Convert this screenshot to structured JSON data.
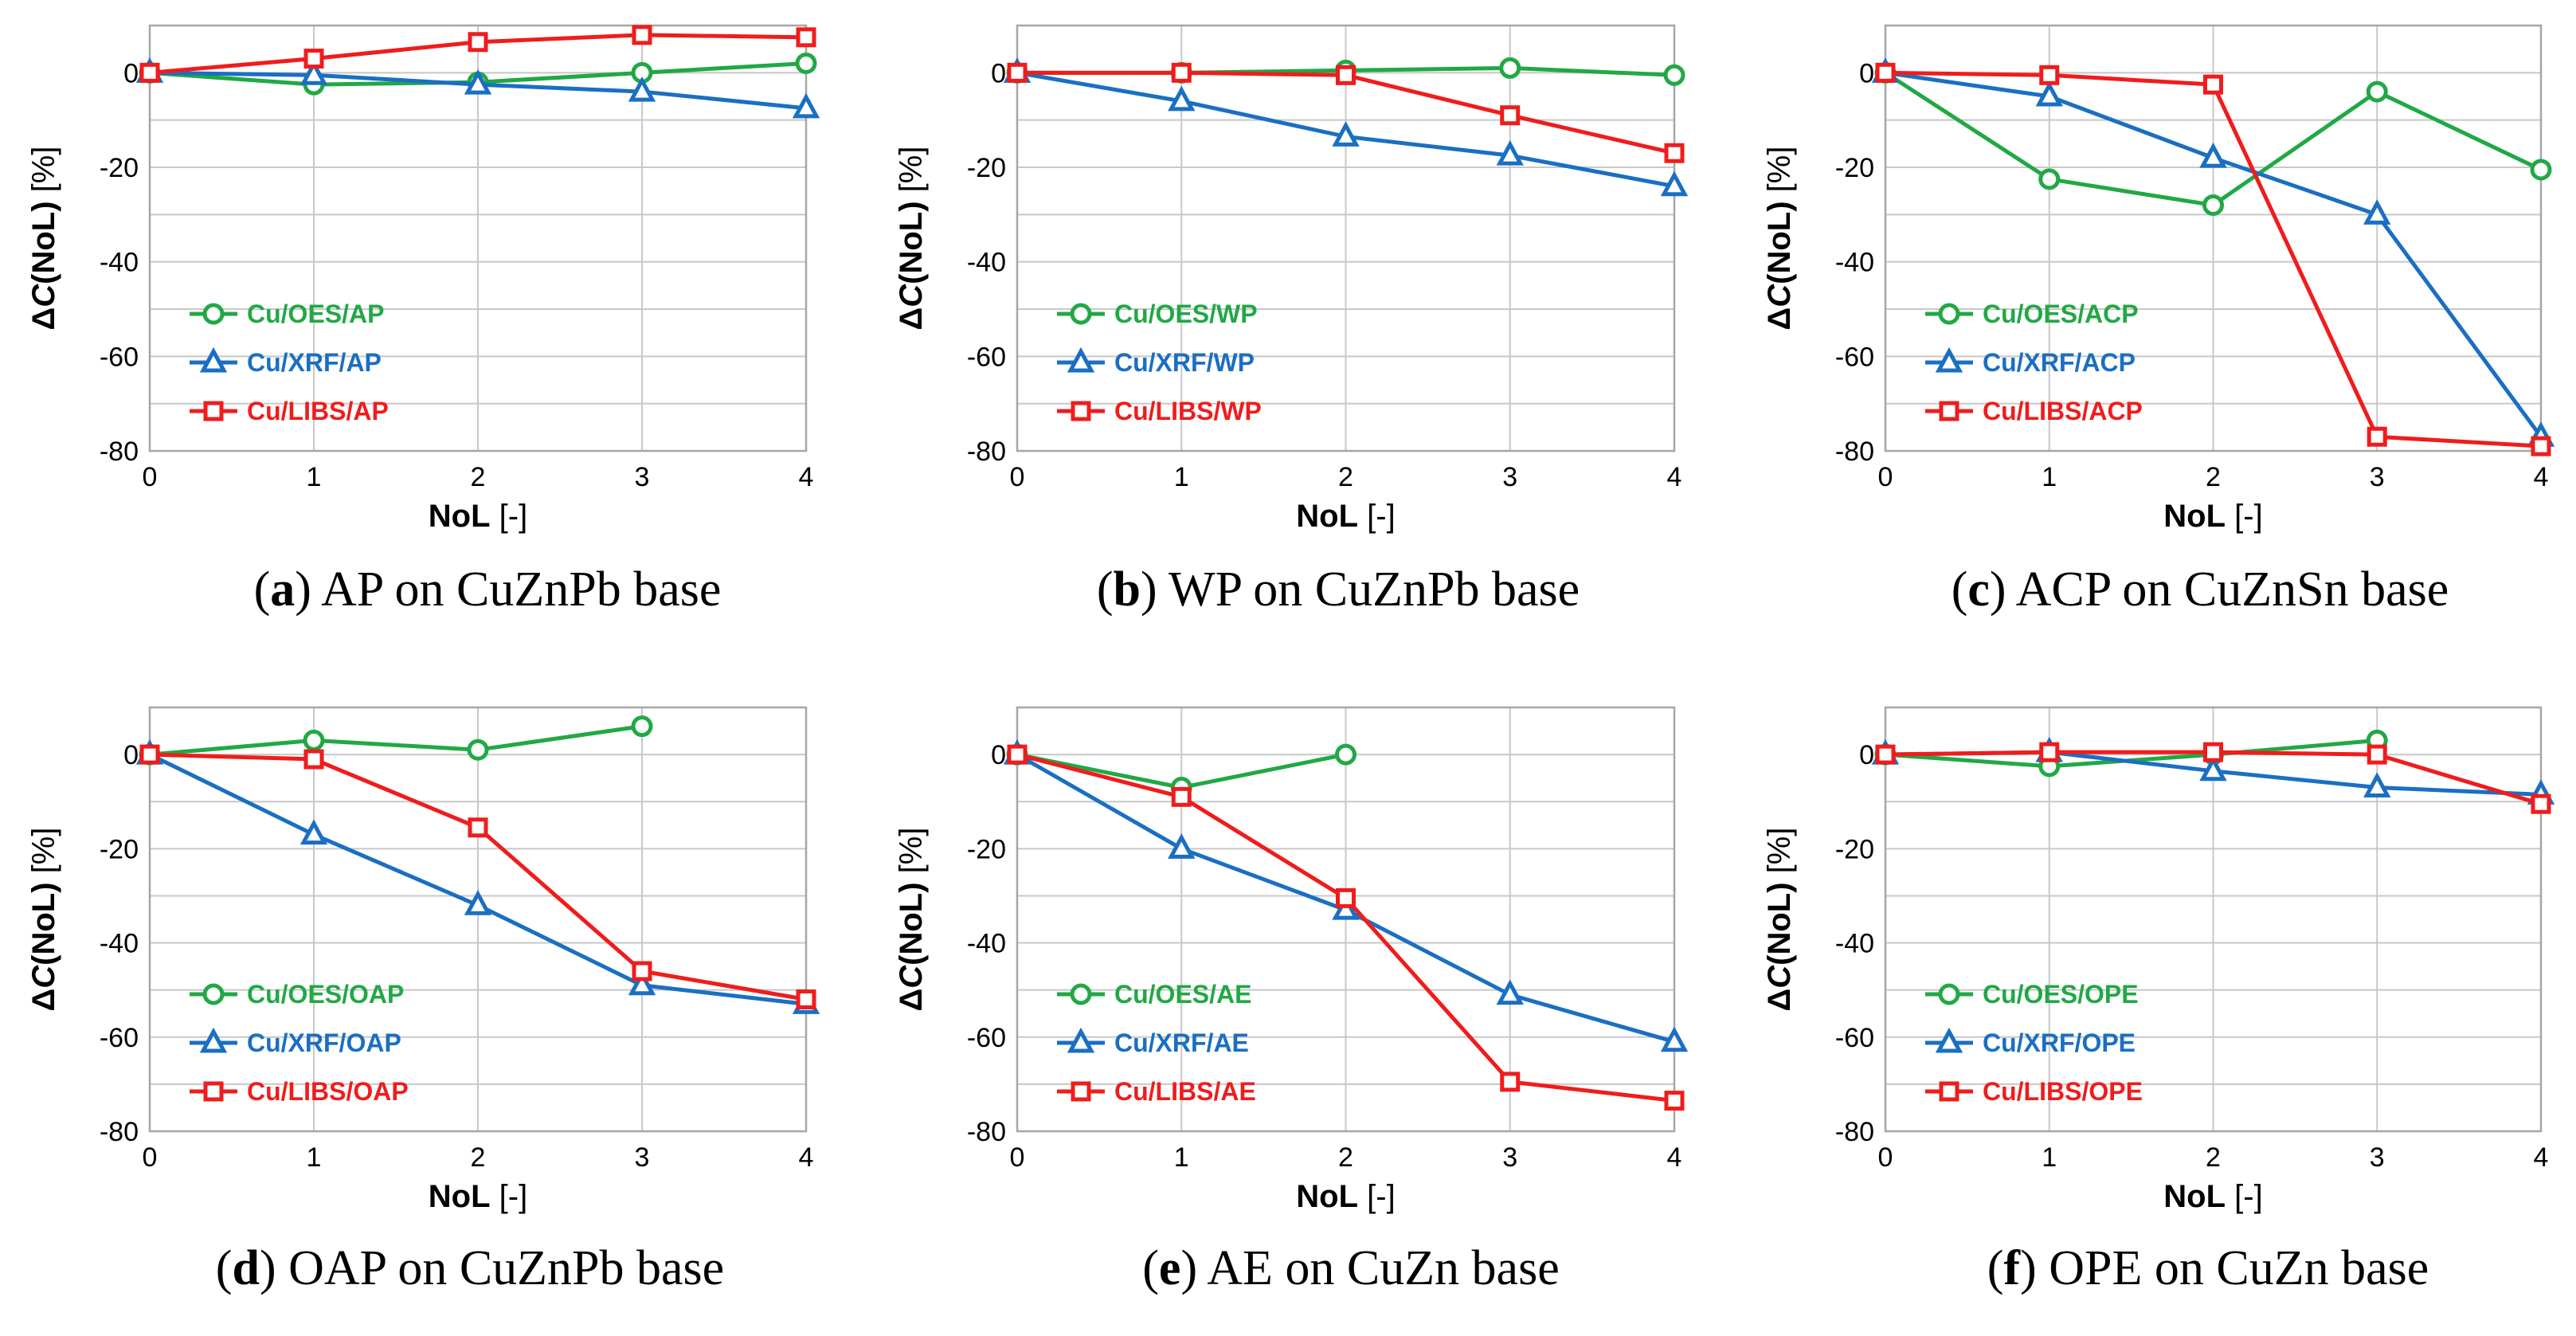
{
  "figure_title": "",
  "colors": {
    "oes": "#21a845",
    "xrf": "#1a6fc2",
    "libs": "#f01c1c"
  },
  "chart_data": [
    {
      "type": "line",
      "id": "a",
      "caption_letter": "a",
      "caption_text": "AP on CuZnPb base",
      "xlabel_bold": "NoL",
      "xlabel_rest": " [-]",
      "ylabel_prefix": "Δ",
      "ylabel_italic": "C",
      "ylabel_bold": "(NoL)",
      "ylabel_rest": " [%]",
      "xlim": [
        0,
        4
      ],
      "ylim": [
        -80,
        10
      ],
      "xticks": [
        0,
        1,
        2,
        3,
        4
      ],
      "yticks": [
        0,
        -20,
        -40,
        -60,
        -80
      ],
      "series": [
        {
          "name": "Cu/OES/AP",
          "key": "oes",
          "marker": "circle",
          "x": [
            0,
            1,
            2,
            3,
            4
          ],
          "y": [
            0,
            -2.5,
            -2,
            0,
            2
          ]
        },
        {
          "name": "Cu/XRF/AP",
          "key": "xrf",
          "marker": "triangle",
          "x": [
            0,
            1,
            2,
            3,
            4
          ],
          "y": [
            0,
            -0.5,
            -2.5,
            -4,
            -7.5
          ]
        },
        {
          "name": "Cu/LIBS/AP",
          "key": "libs",
          "marker": "square",
          "x": [
            0,
            1,
            2,
            3,
            4
          ],
          "y": [
            0,
            3,
            6.5,
            8,
            7.5
          ]
        }
      ]
    },
    {
      "type": "line",
      "id": "b",
      "caption_letter": "b",
      "caption_text": "WP on CuZnPb base",
      "xlabel_bold": "NoL",
      "xlabel_rest": " [-]",
      "ylabel_prefix": "Δ",
      "ylabel_italic": "C",
      "ylabel_bold": "(NoL)",
      "ylabel_rest": " [%]",
      "xlim": [
        0,
        4
      ],
      "ylim": [
        -80,
        10
      ],
      "xticks": [
        0,
        1,
        2,
        3,
        4
      ],
      "yticks": [
        0,
        -20,
        -40,
        -60,
        -80
      ],
      "series": [
        {
          "name": "Cu/OES/WP",
          "key": "oes",
          "marker": "circle",
          "x": [
            0,
            1,
            2,
            3,
            4
          ],
          "y": [
            0,
            0,
            0.5,
            1,
            -0.5
          ]
        },
        {
          "name": "Cu/XRF/WP",
          "key": "xrf",
          "marker": "triangle",
          "x": [
            0,
            1,
            2,
            3,
            4
          ],
          "y": [
            0,
            -6,
            -13.5,
            -17.5,
            -24
          ]
        },
        {
          "name": "Cu/LIBS/WP",
          "key": "libs",
          "marker": "square",
          "x": [
            0,
            1,
            2,
            3,
            4
          ],
          "y": [
            0,
            0,
            -0.5,
            -9,
            -17
          ]
        }
      ]
    },
    {
      "type": "line",
      "id": "c",
      "caption_letter": "c",
      "caption_text": "ACP on CuZnSn base",
      "xlabel_bold": "NoL",
      "xlabel_rest": " [-]",
      "ylabel_prefix": "Δ",
      "ylabel_italic": "C",
      "ylabel_bold": "(NoL)",
      "ylabel_rest": " [%]",
      "xlim": [
        0,
        4
      ],
      "ylim": [
        -80,
        10
      ],
      "xticks": [
        0,
        1,
        2,
        3,
        4
      ],
      "yticks": [
        0,
        -20,
        -40,
        -60,
        -80
      ],
      "series": [
        {
          "name": "Cu/OES/ACP",
          "key": "oes",
          "marker": "circle",
          "x": [
            0,
            1,
            2,
            3,
            4
          ],
          "y": [
            0,
            -22.5,
            -28,
            -4,
            -20.5
          ]
        },
        {
          "name": "Cu/XRF/ACP",
          "key": "xrf",
          "marker": "triangle",
          "x": [
            0,
            1,
            2,
            3,
            4
          ],
          "y": [
            0,
            -5,
            -18,
            -30,
            -77
          ]
        },
        {
          "name": "Cu/LIBS/ACP",
          "key": "libs",
          "marker": "square",
          "x": [
            0,
            1,
            2,
            3,
            4
          ],
          "y": [
            0,
            -0.5,
            -2.5,
            -77,
            -79
          ]
        }
      ]
    },
    {
      "type": "line",
      "id": "d",
      "caption_letter": "d",
      "caption_text": "OAP on CuZnPb base",
      "xlabel_bold": "NoL",
      "xlabel_rest": " [-]",
      "ylabel_prefix": "Δ",
      "ylabel_italic": "C",
      "ylabel_bold": "(NoL)",
      "ylabel_rest": " [%]",
      "xlim": [
        0,
        4
      ],
      "ylim": [
        -80,
        10
      ],
      "xticks": [
        0,
        1,
        2,
        3,
        4
      ],
      "yticks": [
        0,
        -20,
        -40,
        -60,
        -80
      ],
      "series": [
        {
          "name": "Cu/OES/OAP",
          "key": "oes",
          "marker": "circle",
          "x": [
            0,
            1,
            2,
            3
          ],
          "y": [
            0,
            3,
            1,
            6
          ]
        },
        {
          "name": "Cu/XRF/OAP",
          "key": "xrf",
          "marker": "triangle",
          "x": [
            0,
            1,
            2,
            3,
            4
          ],
          "y": [
            0,
            -17,
            -32,
            -49,
            -53
          ]
        },
        {
          "name": "Cu/LIBS/OAP",
          "key": "libs",
          "marker": "square",
          "x": [
            0,
            1,
            2,
            3,
            4
          ],
          "y": [
            0,
            -1,
            -15.5,
            -46,
            -52
          ]
        }
      ]
    },
    {
      "type": "line",
      "id": "e",
      "caption_letter": "e",
      "caption_text": "AE on CuZn base",
      "xlabel_bold": "NoL",
      "xlabel_rest": " [-]",
      "ylabel_prefix": "Δ",
      "ylabel_italic": "C",
      "ylabel_bold": "(NoL)",
      "ylabel_rest": " [%]",
      "xlim": [
        0,
        4
      ],
      "ylim": [
        -80,
        10
      ],
      "xticks": [
        0,
        1,
        2,
        3,
        4
      ],
      "yticks": [
        0,
        -20,
        -40,
        -60,
        -80
      ],
      "series": [
        {
          "name": "Cu/OES/AE",
          "key": "oes",
          "marker": "circle",
          "x": [
            0,
            1,
            2
          ],
          "y": [
            0,
            -7,
            0
          ]
        },
        {
          "name": "Cu/XRF/AE",
          "key": "xrf",
          "marker": "triangle",
          "x": [
            0,
            1,
            2,
            3,
            4
          ],
          "y": [
            0,
            -20,
            -33,
            -51,
            -61
          ]
        },
        {
          "name": "Cu/LIBS/AE",
          "key": "libs",
          "marker": "square",
          "x": [
            0,
            1,
            2,
            3,
            4
          ],
          "y": [
            0,
            -9,
            -30.5,
            -69.5,
            -73.5
          ]
        }
      ]
    },
    {
      "type": "line",
      "id": "f",
      "caption_letter": "f",
      "caption_text": "OPE on CuZn base",
      "xlabel_bold": "NoL",
      "xlabel_rest": " [-]",
      "ylabel_prefix": "Δ",
      "ylabel_italic": "C",
      "ylabel_bold": "(NoL)",
      "ylabel_rest": " [%]",
      "xlim": [
        0,
        4
      ],
      "ylim": [
        -80,
        10
      ],
      "xticks": [
        0,
        1,
        2,
        3,
        4
      ],
      "yticks": [
        0,
        -20,
        -40,
        -60,
        -80
      ],
      "series": [
        {
          "name": "Cu/OES/OPE",
          "key": "oes",
          "marker": "circle",
          "x": [
            0,
            1,
            2,
            3
          ],
          "y": [
            0,
            -2.5,
            0,
            3
          ]
        },
        {
          "name": "Cu/XRF/OPE",
          "key": "xrf",
          "marker": "triangle",
          "x": [
            0,
            1,
            2,
            3,
            4
          ],
          "y": [
            0,
            0.5,
            -3.5,
            -7,
            -8.5
          ]
        },
        {
          "name": "Cu/LIBS/OPE",
          "key": "libs",
          "marker": "square",
          "x": [
            0,
            1,
            2,
            3,
            4
          ],
          "y": [
            0,
            0.5,
            0.5,
            0,
            -10.5
          ]
        }
      ]
    }
  ]
}
